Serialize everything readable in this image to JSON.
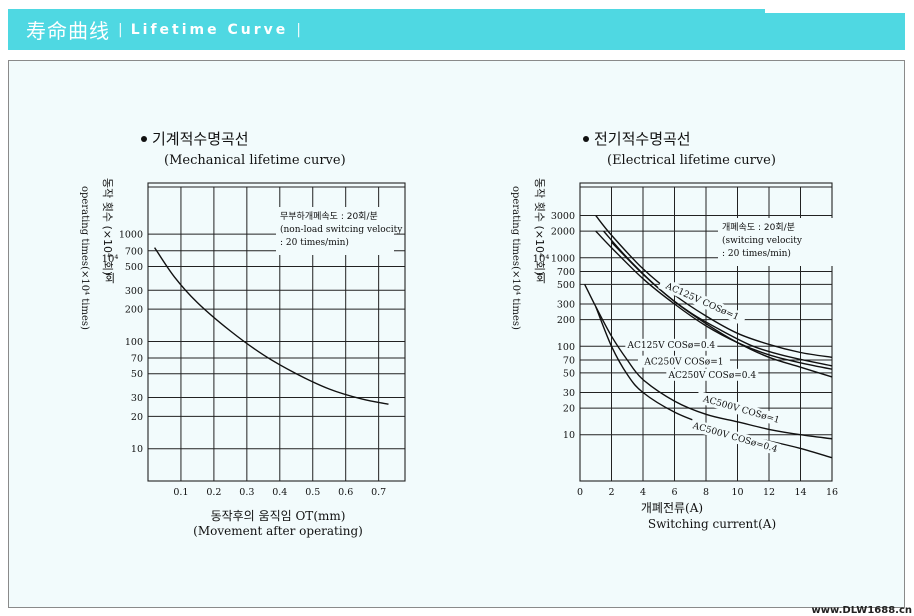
{
  "header": {
    "title_cn": "寿命曲线",
    "separator": "|",
    "title_en": "Lifetime Curve"
  },
  "watermark": "www.DLW1688.cn",
  "chart_data": [
    {
      "type": "line",
      "title": "기계적수명곡선",
      "subtitle": "(Mechanical lifetime curve)",
      "xlabel": "동작후의 움직임 OT(mm)",
      "xlabel2": "(Movement after operating)",
      "ylabel": "동작 횟수 (×10⁴ 회)",
      "ylabel2": "operating times(×10⁴ times)",
      "y_unit": "10⁴",
      "y_unit_suffix": "회",
      "yscale": "log",
      "xlim": [
        0,
        0.78
      ],
      "ylim": [
        5,
        3000
      ],
      "x_ticks": [
        "0.1",
        "0.2",
        "0.3",
        "0.4",
        "0.5",
        "0.6",
        "0.7"
      ],
      "y_ticks": [
        "10",
        "20",
        "30",
        "50",
        "70",
        "100",
        "200",
        "300",
        "500",
        "700",
        "1000"
      ],
      "note": [
        "무부하개폐속도 : 20회/분",
        "(non-load switcing velocity",
        ": 20 times/min)"
      ],
      "series": [
        {
          "x": [
            0.02,
            0.08,
            0.15,
            0.25,
            0.35,
            0.45,
            0.55,
            0.65,
            0.73
          ],
          "y": [
            750,
            400,
            230,
            125,
            75,
            50,
            36,
            29,
            26
          ]
        }
      ]
    },
    {
      "type": "line",
      "title": "전기적수명곡선",
      "subtitle": "(Electrical lifetime curve)",
      "xlabel": "개폐전류(A)",
      "xlabel2": "Switching current(A)",
      "ylabel": "동작 횟수 (×10⁴ 회)",
      "ylabel2": "operating times(×10⁴ times)",
      "y_unit": "10⁴",
      "y_unit_suffix": "회",
      "yscale": "log",
      "xlim": [
        0,
        16
      ],
      "ylim": [
        3,
        7000
      ],
      "x_ticks": [
        "0",
        "2",
        "4",
        "6",
        "8",
        "10",
        "12",
        "14",
        "16"
      ],
      "y_ticks": [
        "10",
        "20",
        "30",
        "50",
        "70",
        "100",
        "200",
        "300",
        "500",
        "700",
        "1000",
        "2000",
        "3000"
      ],
      "note": [
        "개폐속도 : 20회/분",
        "(switcing velocity",
        ": 20 times/min)"
      ],
      "series": [
        {
          "name": "AC125V COSø=1",
          "x": [
            1,
            2,
            4,
            6,
            8,
            10,
            12,
            14,
            16
          ],
          "y": [
            3000,
            1800,
            750,
            380,
            220,
            140,
            105,
            85,
            75
          ]
        },
        {
          "name": "AC125V COSø=0.4",
          "x": [
            1,
            2,
            4,
            6,
            8,
            10,
            12,
            14,
            16
          ],
          "y": [
            2000,
            1300,
            580,
            300,
            170,
            110,
            80,
            65,
            55
          ]
        },
        {
          "name": "AC250V COSø=1",
          "x": [
            1.5,
            3,
            5,
            7,
            9,
            11,
            13,
            16
          ],
          "y": [
            2000,
            1000,
            450,
            240,
            150,
            100,
            78,
            60
          ]
        },
        {
          "name": "AC250V COSø=0.4",
          "x": [
            2,
            4,
            6,
            8,
            10,
            12,
            14,
            16
          ],
          "y": [
            1500,
            650,
            320,
            180,
            110,
            75,
            58,
            45
          ]
        },
        {
          "name": "AC500V COSø=1",
          "x": [
            0.3,
            1,
            2,
            3,
            4,
            6,
            8,
            10,
            12,
            14,
            16
          ],
          "y": [
            500,
            280,
            130,
            70,
            42,
            24,
            17,
            14,
            11.5,
            10,
            9
          ]
        },
        {
          "name": "AC500V COSø=0.4",
          "x": [
            1,
            2,
            3,
            4,
            6,
            8,
            10,
            12,
            14,
            16
          ],
          "y": [
            280,
            100,
            48,
            30,
            18,
            13,
            10,
            8.5,
            7,
            5.5
          ]
        }
      ],
      "series_labels": [
        "AC125V COSø=1",
        "AC125V COSø=0.4",
        "AC250V COSø=1",
        "AC250V COSø=0.4",
        "AC500V COSø=1",
        "AC500V COSø=0.4"
      ]
    }
  ]
}
